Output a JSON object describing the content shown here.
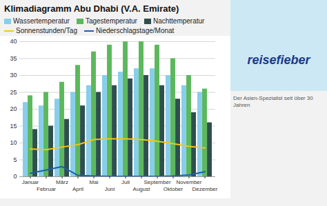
{
  "chart_data": {
    "type": "bar",
    "title": "Klimadiagramm Abu Dhabi (V.A. Emirate)",
    "subtitle": "Der Asien-Spezialist seit über 30 Jahren",
    "annotations": [
      "reisefieber"
    ],
    "categories": [
      "Januar",
      "Februar",
      "März",
      "April",
      "Mai",
      "Juni",
      "Juli",
      "August",
      "September",
      "Oktober",
      "November",
      "Dezember"
    ],
    "series": [
      {
        "name": "Wassertemperatur",
        "type": "bar",
        "color": "#87CEEB",
        "values": [
          22,
          21,
          23,
          25,
          27,
          30,
          31,
          32,
          32,
          30,
          27,
          25
        ]
      },
      {
        "name": "Tagestemperatur",
        "type": "bar",
        "color": "#5CB85C",
        "values": [
          24,
          25,
          28,
          33,
          37,
          39,
          40,
          40,
          39,
          35,
          30,
          26
        ]
      },
      {
        "name": "Nachttemperatur",
        "type": "bar",
        "color": "#2F4F4F",
        "values": [
          14,
          15,
          17,
          21,
          25,
          27,
          29,
          30,
          27,
          23,
          19,
          16
        ]
      },
      {
        "name": "Sonnenstunden/Tag",
        "type": "line",
        "color": "#F5C518",
        "values": [
          8.2,
          8.0,
          8.8,
          9.5,
          11.0,
          11.2,
          11.2,
          11.0,
          10.5,
          9.8,
          9.0,
          8.5
        ]
      },
      {
        "name": "Niederschlagstage/Monat",
        "type": "line",
        "color": "#1E5EA8",
        "values": [
          1.0,
          2.0,
          3.0,
          0.4,
          0.2,
          0.1,
          0.1,
          0.1,
          0.1,
          0.2,
          0.5,
          1.5
        ]
      }
    ],
    "ylim": [
      0,
      40
    ],
    "yticks": [
      0,
      5,
      10,
      15,
      20,
      25,
      30,
      35,
      40
    ],
    "grid": true,
    "legend": "upper left"
  }
}
